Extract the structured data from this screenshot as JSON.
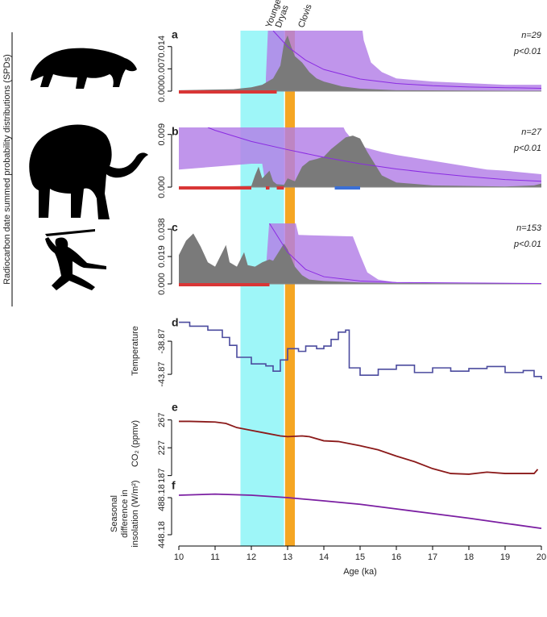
{
  "figure": {
    "ylabel": "Radiocarbon date summed probability distributions (SPDs)",
    "xlim": [
      10,
      20
    ],
    "xticks": [
      10,
      11,
      12,
      13,
      14,
      15,
      16,
      17,
      18,
      19,
      20
    ],
    "xlabel": "Age (ka)",
    "bands": [
      {
        "label_lines": [
          "Younger",
          "Dryas"
        ],
        "start": 11.7,
        "end": 12.9,
        "color": "#9ef6f8"
      },
      {
        "label_lines": [
          "Clovis"
        ],
        "start": 12.93,
        "end": 13.2,
        "color": "#f5a623"
      }
    ]
  },
  "chart_data": [
    {
      "type": "spd",
      "letter": "a",
      "stats": [
        "n=29",
        "p<0.01"
      ],
      "ylim": [
        0,
        0.019
      ],
      "yticks": [
        {
          "value": 0,
          "label": "0.000"
        },
        0.007,
        0.014
      ],
      "envelope": {
        "color": "#b27ee6",
        "x": [
          12.4,
          12.5,
          13,
          14,
          15,
          15.1,
          15.3,
          15.6,
          16,
          17,
          18,
          19,
          20
        ],
        "upper": [
          0.004,
          0.03,
          0.03,
          0.03,
          0.025,
          0.016,
          0.009,
          0.006,
          0.004,
          0.003,
          0.0025,
          0.002,
          0.002
        ]
      },
      "model": {
        "color": "#8a2be2",
        "x": [
          12.6,
          13,
          13.5,
          14,
          15,
          16,
          17,
          18,
          20
        ],
        "values": [
          0.019,
          0.014,
          0.0097,
          0.0068,
          0.0038,
          0.0024,
          0.0017,
          0.0013,
          0.0009
        ]
      },
      "spd": {
        "color": "#7a7a7a",
        "x": [
          10,
          11,
          11.5,
          12,
          12.3,
          12.6,
          12.8,
          12.9,
          13.0,
          13.1,
          13.2,
          13.4,
          13.6,
          13.8,
          14,
          14.5,
          15,
          16,
          20
        ],
        "values": [
          0.0003,
          0.0005,
          0.0006,
          0.0012,
          0.002,
          0.004,
          0.008,
          0.015,
          0.0175,
          0.014,
          0.011,
          0.009,
          0.006,
          0.004,
          0.003,
          0.0015,
          0.0008,
          0.0003,
          0.0001
        ]
      },
      "negative_deviation": {
        "color": "#d93636",
        "ranges": [
          [
            10,
            12.7
          ]
        ]
      }
    },
    {
      "type": "spd",
      "letter": "b",
      "stats": [
        "n=27",
        "p<0.01"
      ],
      "ylim": [
        0,
        0.0102
      ],
      "yticks": [
        {
          "value": 0,
          "label": "0.000"
        },
        0.009
      ],
      "envelope": {
        "color": "#b27ee6",
        "x": [
          10,
          11,
          12,
          12.3,
          12.4,
          13,
          14,
          14.4,
          14.6,
          14.8,
          15,
          15.3,
          15.6,
          16,
          16.5,
          17,
          17.5,
          18,
          18.5,
          19,
          19.5,
          20
        ],
        "upper": [
          0.012,
          0.012,
          0.012,
          0.012,
          0.012,
          0.012,
          0.012,
          0.012,
          0.0095,
          0.008,
          0.007,
          0.0065,
          0.006,
          0.0055,
          0.005,
          0.0045,
          0.004,
          0.0035,
          0.003,
          0.0028,
          0.0025,
          0.0022
        ],
        "lower": [
          0.003,
          0.0035,
          0.004,
          0.004,
          0,
          0,
          0,
          0,
          0,
          0,
          0,
          0,
          0,
          0,
          0,
          0,
          0,
          0,
          0,
          0,
          0,
          0
        ]
      },
      "model": {
        "color": "#8a2be2",
        "x": [
          10.8,
          11,
          12,
          13,
          14,
          15,
          16,
          17,
          18,
          19,
          20
        ],
        "values": [
          0.0102,
          0.0097,
          0.0078,
          0.0064,
          0.0051,
          0.004,
          0.0031,
          0.0024,
          0.0018,
          0.0013,
          0.001
        ]
      },
      "spd": {
        "color": "#7a7a7a",
        "x": [
          10,
          12,
          12.1,
          12.2,
          12.3,
          12.5,
          12.6,
          12.7,
          12.9,
          13,
          13.2,
          13.4,
          13.6,
          13.8,
          14,
          14.2,
          14.4,
          14.6,
          14.8,
          15,
          15.2,
          15.4,
          15.6,
          16,
          17,
          19,
          19.8,
          20
        ],
        "values": [
          0,
          0.0002,
          0.002,
          0.0035,
          0.0015,
          0.0028,
          0.001,
          0.0005,
          0.0004,
          0.0015,
          0.001,
          0.0035,
          0.0045,
          0.0048,
          0.0052,
          0.0065,
          0.0075,
          0.0085,
          0.0088,
          0.0083,
          0.006,
          0.004,
          0.002,
          0.0008,
          0.0003,
          0.0001,
          0.0003,
          0.0006
        ]
      },
      "negative_deviation": {
        "color": "#d93636",
        "ranges": [
          [
            10,
            12.0
          ],
          [
            12.4,
            12.5
          ],
          [
            12.7,
            12.9
          ]
        ]
      },
      "positive_deviation": {
        "color": "#3b6fd6",
        "ranges": [
          [
            14.3,
            15.0
          ]
        ]
      }
    },
    {
      "type": "spd",
      "letter": "c",
      "stats": [
        "n=153",
        "p<0.01"
      ],
      "ylim": [
        0,
        0.042
      ],
      "yticks": [
        {
          "value": 0,
          "label": "0.000"
        },
        0.019,
        0.038
      ],
      "envelope": {
        "color": "#b27ee6",
        "x": [
          12.4,
          12.5,
          13.2,
          13.3,
          14.8,
          15,
          15.2,
          15.5,
          16,
          17,
          20
        ],
        "upper": [
          0.01,
          0.045,
          0.045,
          0.034,
          0.033,
          0.02,
          0.008,
          0.003,
          0.001,
          0.0005,
          0.0003
        ]
      },
      "model": {
        "color": "#8a2be2",
        "x": [
          12.5,
          13,
          13.5,
          14,
          15,
          16,
          20
        ],
        "values": [
          0.042,
          0.022,
          0.01,
          0.005,
          0.002,
          0.001,
          0.0003
        ]
      },
      "spd": {
        "color": "#7a7a7a",
        "x": [
          10,
          10.2,
          10.4,
          10.6,
          10.8,
          11,
          11.2,
          11.3,
          11.4,
          11.6,
          11.8,
          11.9,
          12.1,
          12.3,
          12.5,
          12.6,
          12.8,
          12.9,
          13,
          13.2,
          13.4,
          13.6,
          14,
          14.5,
          15,
          16,
          20
        ],
        "values": [
          0.02,
          0.03,
          0.035,
          0.026,
          0.015,
          0.012,
          0.022,
          0.027,
          0.015,
          0.012,
          0.022,
          0.013,
          0.012,
          0.015,
          0.017,
          0.016,
          0.024,
          0.028,
          0.024,
          0.012,
          0.006,
          0.003,
          0.002,
          0.0015,
          0.001,
          0.0005,
          0.0001
        ]
      },
      "negative_deviation": {
        "color": "#d93636",
        "ranges": [
          [
            10,
            12.5
          ]
        ]
      }
    },
    {
      "type": "step",
      "letter": "d",
      "ylabel_lines": [
        "Temperature"
      ],
      "ylim": [
        -45.2,
        -35.45
      ],
      "yticks": [
        -43.87,
        -38.87
      ],
      "color": "#4b4b9e",
      "x": [
        10,
        10.3,
        10.8,
        11.2,
        11.4,
        11.6,
        12,
        12.4,
        12.6,
        12.8,
        13,
        13.3,
        13.5,
        13.8,
        14,
        14.2,
        14.4,
        14.6,
        14.7,
        15,
        15.5,
        16,
        16.5,
        17,
        17.5,
        18,
        18.5,
        19,
        19.5,
        19.8,
        20
      ],
      "values": [
        -36.0,
        -36.6,
        -37.2,
        -38.3,
        -39.5,
        -41.3,
        -42.3,
        -42.6,
        -43.4,
        -41.7,
        -40.0,
        -40.4,
        -39.6,
        -40.0,
        -39.6,
        -38.6,
        -37.5,
        -37.2,
        -42.9,
        -44.0,
        -43.1,
        -42.5,
        -43.6,
        -42.9,
        -43.4,
        -43.0,
        -42.7,
        -43.6,
        -43.3,
        -44.2,
        -44.6
      ]
    },
    {
      "type": "line",
      "letter": "e",
      "ylabel_lines": [
        "CO₂ (ppmv)"
      ],
      "ylim": [
        175,
        291
      ],
      "yticks": [
        187,
        227,
        267
      ],
      "color": "#8b1a1a",
      "x": [
        10,
        10.3,
        11,
        11.3,
        11.6,
        12,
        12.4,
        12.8,
        13,
        13.4,
        13.6,
        14,
        14.4,
        15,
        15.5,
        16,
        16.5,
        17,
        17.5,
        18,
        18.5,
        19,
        19.5,
        19.8,
        19.9
      ],
      "values": [
        265,
        265,
        264,
        262,
        256,
        252,
        248,
        244,
        243,
        244,
        243,
        237,
        236,
        230,
        224,
        215,
        207,
        197,
        190,
        189,
        192,
        190,
        190,
        190,
        196
      ]
    },
    {
      "type": "line",
      "letter": "f",
      "ylabel_lines": [
        "Seasonal",
        "difference in",
        "insolation (W/m²)"
      ],
      "ylim": [
        436,
        505.6
      ],
      "yticks": [
        448.18,
        488.18
      ],
      "color": "#7b1fa2",
      "x": [
        10,
        11,
        12,
        13,
        14,
        15,
        16,
        17,
        18,
        19,
        20
      ],
      "values": [
        490.8,
        492,
        490.8,
        488.2,
        484.7,
        481,
        476,
        471,
        466,
        460.5,
        455
      ]
    }
  ]
}
